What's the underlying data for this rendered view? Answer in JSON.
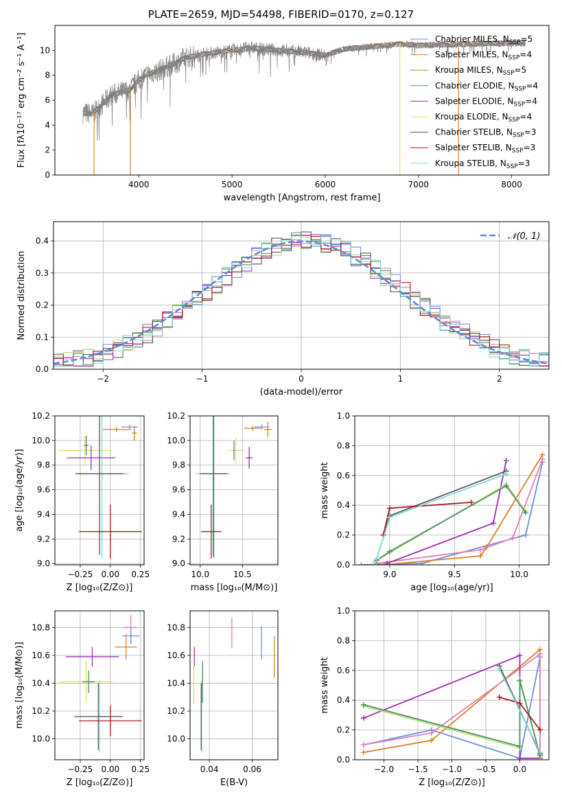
{
  "figure": {
    "title": "PLATE=2659, MJD=54498, FIBERID=0170, z=0.127"
  },
  "colors": {
    "ChabrierMILES": "#6d8fdc",
    "SalpeterMILES": "#e07e22",
    "KroupaMILES": "#a88b2a",
    "ChabrierELODIE": "#4d8f6d",
    "SalpeterELODIE": "#9a2fb2",
    "KroupaELODIE": "#e6e05a",
    "ChabrierSTELIB": "#555555",
    "SalpeterSTELIB": "#b0141c",
    "KroupaSTELIB": "#80d8d8",
    "SalpeterMILES_hist": "#e080b8",
    "KroupaELODIE_hist": "#b8e070",
    "data_spectrum": "#808080",
    "normal_curve": "#5b8bd6",
    "grid": "#b0b0b0"
  },
  "chart_data": [
    {
      "id": "spectrum",
      "type": "line",
      "title": "",
      "xlabel": "wavelength [Angstrom, rest frame]",
      "ylabel": "Flux [fλ10⁻¹⁷ erg cm⁻² s⁻¹ A⁻¹]",
      "xlim": [
        3100,
        8400
      ],
      "ylim": [
        0,
        12
      ],
      "xticks": [
        4000,
        5000,
        6000,
        7000,
        8000
      ],
      "yticks": [
        0,
        2,
        4,
        6,
        8,
        10
      ],
      "grid": false,
      "legend_placement": "right",
      "data_wavelength_range": [
        3400,
        8150
      ],
      "continuum_x": [
        3400,
        3500,
        3600,
        3700,
        3800,
        3900,
        4000,
        4100,
        4200,
        4300,
        4400,
        4500,
        4700,
        5000,
        5200,
        5500,
        5800,
        6000,
        6200,
        6500,
        6800,
        7000,
        7500,
        8000,
        8150
      ],
      "continuum_y": [
        5.0,
        4.9,
        5.6,
        6.4,
        6.6,
        6.8,
        7.6,
        8.1,
        8.3,
        8.7,
        9.0,
        9.4,
        9.7,
        10.0,
        10.2,
        10.0,
        9.8,
        9.6,
        10.1,
        10.3,
        10.5,
        10.4,
        10.5,
        10.6,
        10.6
      ],
      "series": [
        {
          "name": "Chabrier MILES, N_SSP=5",
          "label_main": "Chabrier MILES, N",
          "label_sub": "SSP",
          "label_tail": "=5",
          "color_key": "ChabrierMILES"
        },
        {
          "name": "Salpeter MILES, N_SSP=4",
          "label_main": "Salpeter MILES, N",
          "label_sub": "SSP",
          "label_tail": "=4",
          "color_key": "SalpeterMILES"
        },
        {
          "name": "Kroupa MILES, N_SSP=5",
          "label_main": "Kroupa MILES, N",
          "label_sub": "SSP",
          "label_tail": "=5",
          "color_key": "KroupaMILES"
        },
        {
          "name": "Chabrier ELODIE, N_SSP=4",
          "label_main": "Chabrier ELODIE, N",
          "label_sub": "SSP",
          "label_tail": "=4",
          "color_key": "ChabrierELODIE"
        },
        {
          "name": "Salpeter ELODIE, N_SSP=4",
          "label_main": "Salpeter ELODIE, N",
          "label_sub": "SSP",
          "label_tail": "=4",
          "color_key": "SalpeterELODIE"
        },
        {
          "name": "Kroupa ELODIE, N_SSP=4",
          "label_main": "Kroupa ELODIE, N",
          "label_sub": "SSP",
          "label_tail": "=4",
          "color_key": "KroupaELODIE"
        },
        {
          "name": "Chabrier STELIB, N_SSP=3",
          "label_main": "Chabrier STELIB, N",
          "label_sub": "SSP",
          "label_tail": "=3",
          "color_key": "ChabrierSTELIB"
        },
        {
          "name": "Salpeter STELIB, N_SSP=3",
          "label_main": "Salpeter STELIB, N",
          "label_sub": "SSP",
          "label_tail": "=3",
          "color_key": "SalpeterSTELIB"
        },
        {
          "name": "Kroupa STELIB, N_SSP=3",
          "label_main": "Kroupa STELIB, N",
          "label_sub": "SSP",
          "label_tail": "=3",
          "color_key": "KroupaSTELIB"
        }
      ],
      "model_drops": [
        {
          "x": 3520,
          "color_key": "SalpeterMILES"
        },
        {
          "x": 3910,
          "color_key": "KroupaMILES"
        },
        {
          "x": 6800,
          "color_key": "KroupaELODIE"
        },
        {
          "x": 7430,
          "color_key": "SalpeterMILES"
        }
      ]
    },
    {
      "id": "residuals",
      "type": "line",
      "xlabel": "(data-model)/error",
      "ylabel": "Normed distribution",
      "xlim": [
        -2.5,
        2.5
      ],
      "ylim": [
        0,
        0.46
      ],
      "xticks": [
        -2,
        -1,
        0,
        1,
        2
      ],
      "xtick_labels": [
        "−2",
        "−1",
        "0",
        "1",
        "2"
      ],
      "yticks": [
        0.0,
        0.1,
        0.2,
        0.3,
        0.4
      ],
      "grid": true,
      "legend_placement": "top-right",
      "normal_curve_label": "𝒩(0, 1)",
      "normal_mean": 0,
      "normal_sigma": 1,
      "bin_width": 0.1,
      "histogram_colors": [
        "ChabrierMILES",
        "SalpeterMILES_hist",
        "ChabrierELODIE",
        "SalpeterELODIE",
        "KroupaELODIE_hist",
        "ChabrierSTELIB",
        "SalpeterSTELIB",
        "KroupaSTELIB"
      ]
    },
    {
      "id": "age_vs_Z",
      "type": "scatter",
      "xlabel": "Z [log₁₀(Z/Z⊙)]",
      "ylabel": "age  [log₁₀(age/yr)]",
      "xlim": [
        -0.46,
        0.28
      ],
      "ylim": [
        8.99,
        10.2
      ],
      "xticks": [
        -0.25,
        0.0,
        0.25
      ],
      "xtick_labels": [
        "−0.25",
        "0.00",
        "0.25"
      ],
      "yticks": [
        9.0,
        9.2,
        9.4,
        9.6,
        9.8,
        10.0,
        10.2
      ],
      "ytick_labels": [
        "9.0",
        "9.2",
        "9.4",
        "9.6",
        "9.8",
        "10.0",
        "10.2"
      ],
      "grid": true,
      "points": [
        {
          "x": 0.16,
          "y": 10.11,
          "xerr": 0.07,
          "yerr": 0.02,
          "color_key": "ChabrierMILES"
        },
        {
          "x": 0.05,
          "y": 10.09,
          "xerr": 0.12,
          "yerr": 0.02,
          "color_key": "SalpeterMILES"
        },
        {
          "x": 0.2,
          "y": 10.06,
          "xerr": 0.02,
          "yerr": 0.06,
          "color_key": "SalpeterMILES"
        },
        {
          "x": -0.21,
          "y": 9.92,
          "xerr": 0.22,
          "yerr": 0.12,
          "color_key": "KroupaELODIE"
        },
        {
          "x": -0.2,
          "y": 9.96,
          "xerr": 0.02,
          "yerr": 0.08,
          "color_key": "ChabrierELODIE"
        },
        {
          "x": -0.16,
          "y": 9.86,
          "xerr": 0.2,
          "yerr": 0.1,
          "color_key": "SalpeterELODIE"
        },
        {
          "x": -0.07,
          "y": 9.73,
          "xerr": 0.22,
          "yerr": 0.68,
          "color_key": "KroupaSTELIB"
        },
        {
          "x": -0.09,
          "y": 9.73,
          "xerr": 0.2,
          "yerr": 0.66,
          "color_key": "ChabrierSTELIB"
        },
        {
          "x": 0.0,
          "y": 9.26,
          "xerr": 0.26,
          "yerr": 0.22,
          "color_key": "SalpeterSTELIB"
        }
      ]
    },
    {
      "id": "age_vs_mass",
      "type": "scatter",
      "xlabel": "mass [log₁₀(M/M⊙)]",
      "ylabel": "",
      "xlim": [
        9.88,
        10.92
      ],
      "ylim": [
        8.99,
        10.2
      ],
      "xticks": [
        10.0,
        10.5
      ],
      "xtick_labels": [
        "10.0",
        "10.5"
      ],
      "yticks": [
        9.0,
        9.2,
        9.4,
        9.6,
        9.8,
        10.0,
        10.2
      ],
      "ytick_labels": [
        "9.0",
        "9.2",
        "9.4",
        "9.6",
        "9.8",
        "10.0",
        "10.2"
      ],
      "grid": true,
      "points": [
        {
          "x": 10.73,
          "y": 10.11,
          "xerr": 0.09,
          "yerr": 0.02,
          "color_key": "ChabrierMILES"
        },
        {
          "x": 10.62,
          "y": 10.1,
          "xerr": 0.1,
          "yerr": 0.02,
          "color_key": "SalpeterMILES"
        },
        {
          "x": 10.8,
          "y": 10.09,
          "xerr": 0.05,
          "yerr": 0.06,
          "color_key": "SalpeterMILES"
        },
        {
          "x": 10.42,
          "y": 9.92,
          "xerr": 0.1,
          "yerr": 0.11,
          "color_key": "KroupaELODIE"
        },
        {
          "x": 10.4,
          "y": 9.92,
          "xerr": 0.01,
          "yerr": 0.08,
          "color_key": "ChabrierELODIE"
        },
        {
          "x": 10.58,
          "y": 9.86,
          "xerr": 0.04,
          "yerr": 0.09,
          "color_key": "SalpeterELODIE"
        },
        {
          "x": 10.15,
          "y": 9.73,
          "xerr": 0.2,
          "yerr": 0.66,
          "color_key": "KroupaSTELIB"
        },
        {
          "x": 10.16,
          "y": 9.73,
          "xerr": 0.16,
          "yerr": 0.68,
          "color_key": "ChabrierSTELIB"
        },
        {
          "x": 10.13,
          "y": 9.26,
          "xerr": 0.12,
          "yerr": 0.22,
          "color_key": "SalpeterSTELIB"
        }
      ]
    },
    {
      "id": "massweight_vs_age",
      "type": "line",
      "xlabel": "age  [log₁₀(age/yr)]",
      "ylabel": "mass weight",
      "xlim": [
        8.73,
        10.23
      ],
      "ylim": [
        0.0,
        1.0
      ],
      "xticks": [
        9.0,
        9.5,
        10.0
      ],
      "xtick_labels": [
        "9.0",
        "9.5",
        "10.0"
      ],
      "yticks": [
        0.0,
        0.2,
        0.4,
        0.6,
        0.8,
        1.0
      ],
      "ytick_labels": [
        "0.0",
        "0.2",
        "0.4",
        "0.6",
        "0.8",
        "1.0"
      ],
      "grid": true,
      "series": [
        {
          "color_key": "ChabrierMILES",
          "x": [
            8.78,
            9.25,
            10.05,
            10.18
          ],
          "y": [
            0.0,
            0.01,
            0.2,
            0.69
          ]
        },
        {
          "color_key": "SalpeterMILES",
          "x": [
            8.95,
            9.7,
            9.75,
            10.18
          ],
          "y": [
            0.0,
            0.06,
            0.12,
            0.74
          ]
        },
        {
          "color_key": "SalpeterMILES_hist",
          "x": [
            8.9,
            9.7,
            9.95,
            10.18
          ],
          "y": [
            0.01,
            0.1,
            0.18,
            0.71
          ]
        },
        {
          "color_key": "SalpeterELODIE",
          "x": [
            8.98,
            9.8,
            9.9
          ],
          "y": [
            0.01,
            0.28,
            0.7
          ]
        },
        {
          "color_key": "KroupaELODIE_hist",
          "x": [
            8.88,
            9.0,
            9.9,
            10.05
          ],
          "y": [
            0.02,
            0.08,
            0.54,
            0.36
          ]
        },
        {
          "color_key": "ChabrierELODIE",
          "x": [
            8.9,
            9.0,
            9.9,
            10.05
          ],
          "y": [
            0.03,
            0.09,
            0.53,
            0.35
          ]
        },
        {
          "color_key": "ChabrierSTELIB",
          "x": [
            8.95,
            9.0,
            9.9
          ],
          "y": [
            0.2,
            0.33,
            0.63
          ]
        },
        {
          "color_key": "SalpeterSTELIB",
          "x": [
            8.95,
            9.0,
            9.63
          ],
          "y": [
            0.2,
            0.38,
            0.42
          ]
        },
        {
          "color_key": "KroupaSTELIB",
          "x": [
            8.9,
            9.0,
            9.9
          ],
          "y": [
            0.04,
            0.32,
            0.61
          ]
        }
      ]
    },
    {
      "id": "mass_vs_Z",
      "type": "scatter",
      "xlabel": "Z [log₁₀(Z/Z⊙)]",
      "ylabel": "mass [log₁₀(M/M⊙)]",
      "xlim": [
        -0.46,
        0.28
      ],
      "ylim": [
        9.85,
        10.92
      ],
      "xticks": [
        -0.25,
        0.0,
        0.25
      ],
      "xtick_labels": [
        "−0.25",
        "0.00",
        "0.25"
      ],
      "yticks": [
        10.0,
        10.2,
        10.4,
        10.6,
        10.8
      ],
      "ytick_labels": [
        "10.0",
        "10.2",
        "10.4",
        "10.6",
        "10.8"
      ],
      "grid": true,
      "points": [
        {
          "x": 0.17,
          "y": 10.8,
          "xerr": 0.06,
          "yerr": 0.09,
          "color_key": "SalpeterMILES_hist"
        },
        {
          "x": 0.17,
          "y": 10.74,
          "xerr": 0.07,
          "yerr": 0.06,
          "color_key": "ChabrierMILES"
        },
        {
          "x": 0.13,
          "y": 10.66,
          "xerr": 0.09,
          "yerr": 0.09,
          "color_key": "SalpeterMILES"
        },
        {
          "x": -0.15,
          "y": 10.59,
          "xerr": 0.22,
          "yerr": 0.07,
          "color_key": "SalpeterELODIE"
        },
        {
          "x": -0.2,
          "y": 10.41,
          "xerr": 0.22,
          "yerr": 0.15,
          "color_key": "KroupaELODIE"
        },
        {
          "x": -0.18,
          "y": 10.41,
          "xerr": 0.05,
          "yerr": 0.08,
          "color_key": "ChabrierELODIE"
        },
        {
          "x": -0.09,
          "y": 10.16,
          "xerr": 0.2,
          "yerr": 0.26,
          "color_key": "KroupaSTELIB"
        },
        {
          "x": -0.1,
          "y": 10.16,
          "xerr": 0.2,
          "yerr": 0.24,
          "color_key": "ChabrierSTELIB"
        },
        {
          "x": 0.0,
          "y": 10.13,
          "xerr": 0.26,
          "yerr": 0.11,
          "color_key": "SalpeterSTELIB"
        }
      ]
    },
    {
      "id": "mass_vs_EBV",
      "type": "scatter",
      "xlabel": "E(B-V)",
      "ylabel": "",
      "xlim": [
        0.031,
        0.072
      ],
      "ylim": [
        9.85,
        10.92
      ],
      "xticks": [
        0.04,
        0.06
      ],
      "xtick_labels": [
        "0.04",
        "0.06"
      ],
      "yticks": [
        10.0,
        10.2,
        10.4,
        10.6,
        10.8
      ],
      "ytick_labels": [
        "10.0",
        "10.2",
        "10.4",
        "10.6",
        "10.8"
      ],
      "grid": true,
      "points": [
        {
          "x": 0.0505,
          "y": 10.76,
          "yerr": 0.11,
          "color_key": "SalpeterMILES_hist"
        },
        {
          "x": 0.0643,
          "y": 10.69,
          "yerr": 0.12,
          "color_key": "ChabrierMILES"
        },
        {
          "x": 0.0703,
          "y": 10.59,
          "yerr": 0.15,
          "color_key": "SalpeterMILES"
        },
        {
          "x": 0.033,
          "y": 10.59,
          "yerr": 0.07,
          "color_key": "SalpeterELODIE"
        },
        {
          "x": 0.0327,
          "y": 10.39,
          "yerr": 0.14,
          "color_key": "KroupaELODIE"
        },
        {
          "x": 0.0368,
          "y": 10.41,
          "yerr": 0.15,
          "color_key": "ChabrierELODIE"
        },
        {
          "x": 0.0366,
          "y": 10.39,
          "yerr": 0.01,
          "color_key": "SalpeterSTELIB"
        },
        {
          "x": 0.0364,
          "y": 10.16,
          "yerr": 0.26,
          "color_key": "KroupaSTELIB"
        },
        {
          "x": 0.0362,
          "y": 10.16,
          "yerr": 0.24,
          "color_key": "ChabrierSTELIB"
        }
      ]
    },
    {
      "id": "massweight_vs_Z",
      "type": "line",
      "xlabel": "Z [log₁₀(Z/Z⊙)]",
      "ylabel": "mass weight",
      "xlim": [
        -2.43,
        0.43
      ],
      "ylim": [
        0.0,
        1.0
      ],
      "xticks": [
        -2.0,
        -1.5,
        -1.0,
        -0.5,
        0.0
      ],
      "xtick_labels": [
        "−2.0",
        "−1.5",
        "−1.0",
        "−0.5",
        "0.0"
      ],
      "yticks": [
        0.0,
        0.2,
        0.4,
        0.6,
        0.8,
        1.0
      ],
      "ytick_labels": [
        "0.0",
        "0.2",
        "0.4",
        "0.6",
        "0.8",
        "1.0"
      ],
      "grid": true,
      "series": [
        {
          "color_key": "ChabrierMILES",
          "x": [
            -2.3,
            -1.3,
            0.0,
            0.3,
            0.3
          ],
          "y": [
            0.1,
            0.2,
            0.01,
            0.69,
            0.01
          ]
        },
        {
          "color_key": "SalpeterMILES",
          "x": [
            -2.3,
            -1.3,
            0.3,
            0.3
          ],
          "y": [
            0.05,
            0.13,
            0.74,
            0.05
          ]
        },
        {
          "color_key": "SalpeterMILES_hist",
          "x": [
            -2.3,
            -1.3,
            0.3,
            0.3
          ],
          "y": [
            0.1,
            0.18,
            0.71,
            0.01
          ]
        },
        {
          "color_key": "SalpeterELODIE",
          "x": [
            -2.3,
            0.0,
            0.0,
            0.3
          ],
          "y": [
            0.28,
            0.7,
            0.01,
            0.01
          ]
        },
        {
          "color_key": "KroupaELODIE_hist",
          "x": [
            -2.3,
            0.0,
            0.0,
            0.3
          ],
          "y": [
            0.36,
            0.08,
            0.54,
            0.02
          ]
        },
        {
          "color_key": "ChabrierELODIE",
          "x": [
            -2.3,
            0.0,
            0.0,
            0.3
          ],
          "y": [
            0.37,
            0.09,
            0.53,
            0.03
          ]
        },
        {
          "color_key": "ChabrierSTELIB",
          "x": [
            -0.3,
            0.3
          ],
          "y": [
            0.63,
            0.04
          ]
        },
        {
          "color_key": "SalpeterSTELIB",
          "x": [
            -0.3,
            0.0,
            0.3
          ],
          "y": [
            0.42,
            0.38,
            0.2
          ]
        },
        {
          "color_key": "KroupaSTELIB",
          "x": [
            -0.3,
            0.3
          ],
          "y": [
            0.61,
            0.05
          ]
        }
      ]
    }
  ]
}
